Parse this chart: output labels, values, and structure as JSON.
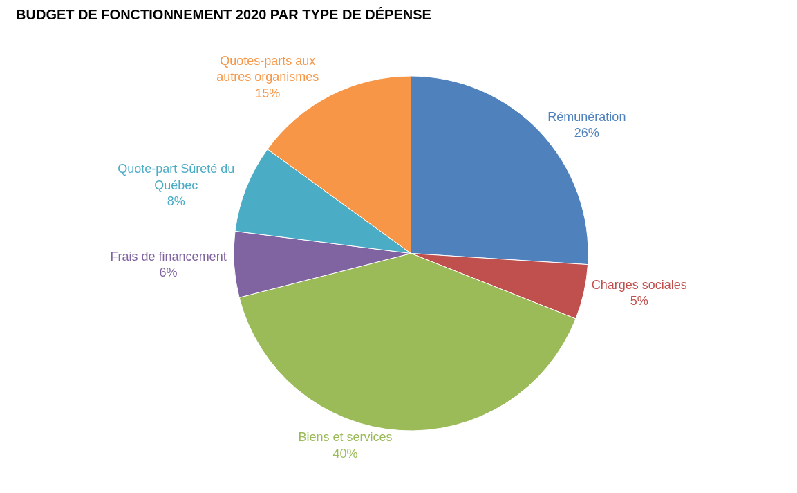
{
  "chart_data": {
    "type": "pie",
    "title": "BUDGET DE FONCTIONNEMENT 2020 PAR TYPE DE DÉPENSE",
    "categories": [
      "Rémunération",
      "Charges sociales",
      "Biens et services",
      "Frais de financement",
      "Quote-part Sûreté du Québec",
      "Quotes-parts aux autres organismes"
    ],
    "values": [
      26,
      5,
      40,
      6,
      8,
      15
    ],
    "value_labels": [
      "26%",
      "5%",
      "40%",
      "6%",
      "8%",
      "15%"
    ],
    "colors": [
      "#4f81bd",
      "#c0504d",
      "#9bbb59",
      "#8064a2",
      "#4bacc6",
      "#f79646"
    ],
    "legend": false
  }
}
